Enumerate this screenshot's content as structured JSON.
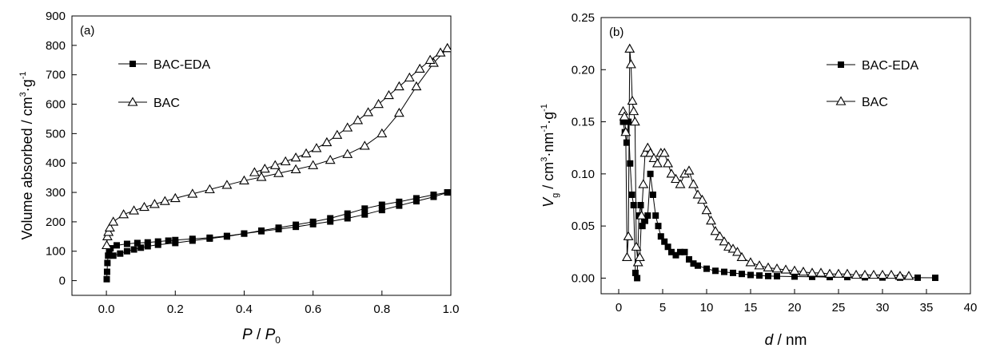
{
  "chart_data": [
    {
      "type": "scatter",
      "panel_label": "(a)",
      "xlabel_main": "P",
      "xlabel_sep": " / ",
      "xlabel_var": "P",
      "xlabel_sub": "0",
      "ylabel_text": "Volume absorbed / cm",
      "ylabel_sup1": "3",
      "ylabel_mid": "·g",
      "ylabel_sup2": "-1",
      "xlim": [
        -0.1,
        1.0
      ],
      "ylim": [
        -50,
        900
      ],
      "xticks": [
        "0.0",
        "0.2",
        "0.4",
        "0.6",
        "0.8",
        "1.0"
      ],
      "xtick_values": [
        0.0,
        0.2,
        0.4,
        0.6,
        0.8,
        1.0
      ],
      "yticks": [
        "0",
        "100",
        "200",
        "300",
        "400",
        "500",
        "600",
        "700",
        "800",
        "900"
      ],
      "ytick_values": [
        0,
        100,
        200,
        300,
        400,
        500,
        600,
        700,
        800,
        900
      ],
      "legend_position": "top-left",
      "series": [
        {
          "name": "BAC-EDA",
          "marker": "filled-square",
          "adsorption": {
            "x": [
              0.001,
              0.002,
              0.003,
              0.005,
              0.008,
              0.012,
              0.03,
              0.06,
              0.09,
              0.12,
              0.15,
              0.18,
              0.2,
              0.25,
              0.3,
              0.35,
              0.4,
              0.45,
              0.5,
              0.55,
              0.6,
              0.65,
              0.7,
              0.75,
              0.8,
              0.85,
              0.9,
              0.95,
              0.99
            ],
            "y": [
              5,
              30,
              60,
              85,
              100,
              110,
              120,
              125,
              128,
              130,
              133,
              136,
              138,
              142,
              146,
              152,
              160,
              168,
              175,
              183,
              192,
              201,
              212,
              225,
              240,
              255,
              270,
              285,
              300
            ]
          },
          "desorption": {
            "x": [
              0.99,
              0.95,
              0.9,
              0.85,
              0.8,
              0.75,
              0.7,
              0.65,
              0.6,
              0.55,
              0.5,
              0.45,
              0.4,
              0.35,
              0.3,
              0.25,
              0.2,
              0.15,
              0.12,
              0.1,
              0.08,
              0.06,
              0.04,
              0.02
            ],
            "y": [
              300,
              292,
              280,
              268,
              258,
              245,
              228,
              212,
              200,
              190,
              180,
              170,
              160,
              150,
              143,
              136,
              128,
              122,
              117,
              112,
              106,
              100,
              92,
              85
            ]
          }
        },
        {
          "name": "BAC",
          "marker": "open-triangle",
          "adsorption": {
            "x": [
              0.001,
              0.003,
              0.006,
              0.01,
              0.02,
              0.05,
              0.08,
              0.11,
              0.14,
              0.17,
              0.2,
              0.25,
              0.3,
              0.35,
              0.4,
              0.45,
              0.5,
              0.55,
              0.6,
              0.65,
              0.7,
              0.75,
              0.8,
              0.85,
              0.9,
              0.95,
              0.99
            ],
            "y": [
              120,
              150,
              165,
              180,
              200,
              225,
              238,
              250,
              260,
              270,
              280,
              295,
              310,
              325,
              340,
              352,
              365,
              378,
              392,
              410,
              430,
              458,
              500,
              570,
              660,
              740,
              790
            ]
          },
          "desorption": {
            "x": [
              0.99,
              0.97,
              0.94,
              0.91,
              0.88,
              0.85,
              0.82,
              0.79,
              0.76,
              0.73,
              0.7,
              0.67,
              0.64,
              0.61,
              0.58,
              0.55,
              0.52,
              0.49,
              0.46,
              0.43
            ],
            "y": [
              790,
              775,
              750,
              720,
              690,
              660,
              630,
              600,
              572,
              545,
              520,
              495,
              470,
              450,
              432,
              418,
              405,
              392,
              380,
              368
            ]
          }
        }
      ]
    },
    {
      "type": "line",
      "panel_label": "(b)",
      "xlabel_var": "d",
      "xlabel_unit": " / nm",
      "ylabel_var": "V",
      "ylabel_sub": "g",
      "ylabel_mid": " / cm",
      "ylabel_sup1": "3",
      "ylabel_mid2": "·nm",
      "ylabel_sup2": "-1",
      "ylabel_mid3": "·g",
      "ylabel_sup3": "-1",
      "xlim": [
        -2,
        40
      ],
      "ylim": [
        -0.015,
        0.25
      ],
      "xticks": [
        "0",
        "5",
        "10",
        "15",
        "20",
        "25",
        "30",
        "35",
        "40"
      ],
      "xtick_values": [
        0,
        5,
        10,
        15,
        20,
        25,
        30,
        35,
        40
      ],
      "yticks": [
        "0.00",
        "0.05",
        "0.10",
        "0.15",
        "0.20",
        "0.25"
      ],
      "ytick_values": [
        0.0,
        0.05,
        0.1,
        0.15,
        0.2,
        0.25
      ],
      "legend_position": "top-right",
      "series": [
        {
          "name": "BAC-EDA",
          "marker": "filled-square",
          "x": [
            0.5,
            0.7,
            0.9,
            1.1,
            1.3,
            1.5,
            1.7,
            1.9,
            2.1,
            2.3,
            2.5,
            2.7,
            3.0,
            3.3,
            3.6,
            3.9,
            4.2,
            4.5,
            4.8,
            5.2,
            5.6,
            6.0,
            6.5,
            7.0,
            7.5,
            8.0,
            8.5,
            9.0,
            10,
            11,
            12,
            13,
            14,
            15,
            16,
            17,
            18,
            20,
            22,
            24,
            26,
            28,
            30,
            32,
            34,
            36
          ],
          "y": [
            0.15,
            0.14,
            0.13,
            0.15,
            0.11,
            0.08,
            0.07,
            0.005,
            0.0,
            0.06,
            0.07,
            0.05,
            0.055,
            0.06,
            0.1,
            0.08,
            0.06,
            0.05,
            0.04,
            0.035,
            0.03,
            0.025,
            0.022,
            0.025,
            0.025,
            0.018,
            0.014,
            0.012,
            0.009,
            0.007,
            0.006,
            0.005,
            0.004,
            0.003,
            0.0025,
            0.002,
            0.0018,
            0.0015,
            0.0012,
            0.001,
            0.001,
            0.0008,
            0.0006,
            0.0005,
            0.0004,
            0.0003
          ]
        },
        {
          "name": "BAC",
          "marker": "open-triangle",
          "x": [
            0.5,
            0.65,
            0.8,
            0.95,
            1.1,
            1.25,
            1.4,
            1.55,
            1.7,
            1.85,
            2.0,
            2.2,
            2.4,
            2.6,
            2.8,
            3.0,
            3.3,
            3.6,
            4.0,
            4.4,
            4.8,
            5.2,
            5.6,
            6.0,
            6.5,
            7.0,
            7.5,
            8.0,
            8.5,
            9.0,
            9.5,
            10,
            10.5,
            11,
            11.5,
            12,
            12.5,
            13,
            13.5,
            14,
            15,
            16,
            17,
            18,
            19,
            20,
            21,
            22,
            23,
            24,
            25,
            26,
            27,
            28,
            29,
            30,
            31,
            32,
            33
          ],
          "y": [
            0.16,
            0.155,
            0.14,
            0.02,
            0.04,
            0.22,
            0.205,
            0.17,
            0.16,
            0.15,
            0.03,
            0.015,
            0.02,
            0.06,
            0.09,
            0.12,
            0.125,
            0.12,
            0.115,
            0.11,
            0.12,
            0.12,
            0.11,
            0.1,
            0.095,
            0.09,
            0.1,
            0.103,
            0.09,
            0.08,
            0.075,
            0.065,
            0.055,
            0.045,
            0.04,
            0.035,
            0.03,
            0.028,
            0.025,
            0.02,
            0.015,
            0.012,
            0.01,
            0.009,
            0.008,
            0.007,
            0.006,
            0.005,
            0.005,
            0.004,
            0.004,
            0.004,
            0.003,
            0.003,
            0.003,
            0.003,
            0.003,
            0.002,
            0.002
          ]
        }
      ]
    }
  ]
}
